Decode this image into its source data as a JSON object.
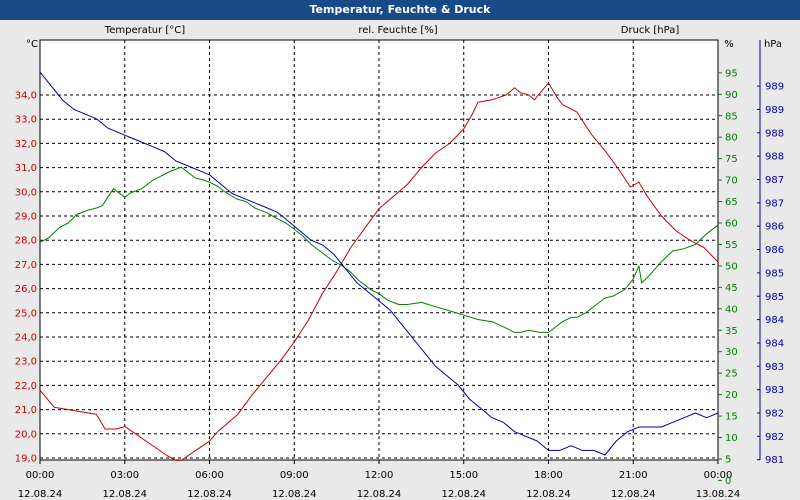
{
  "window": {
    "title": "Temperatur, Feuchte & Druck"
  },
  "colors": {
    "temperature": "#cc0000",
    "humidity": "#008000",
    "pressure": "#0000aa",
    "grid": "#000000",
    "titlebar": "#174a86"
  },
  "chart_data": {
    "type": "line",
    "title": "Temperatur, Feuchte & Druck",
    "grid": true,
    "x_ticks": [
      {
        "time": "00:00",
        "date": "12.08.24"
      },
      {
        "time": "03:00",
        "date": "12.08.24"
      },
      {
        "time": "06:00",
        "date": "12.08.24"
      },
      {
        "time": "09:00",
        "date": "12.08.24"
      },
      {
        "time": "12:00",
        "date": "12.08.24"
      },
      {
        "time": "15:00",
        "date": "12.08.24"
      },
      {
        "time": "18:00",
        "date": "12.08.24"
      },
      {
        "time": "21:00",
        "date": "12.08.24"
      },
      {
        "time": "00:00",
        "date": "13.08.24"
      }
    ],
    "axes": {
      "temperature": {
        "unit": "°C",
        "label": "Temperatur [°C]",
        "ticks": [
          "19,0",
          "20,0",
          "21,0",
          "22,0",
          "23,0",
          "24,0",
          "25,0",
          "26,0",
          "27,0",
          "28,0",
          "29,0",
          "30,0",
          "31,0",
          "32,0",
          "33,0",
          "34,0"
        ]
      },
      "humidity": {
        "unit": "%",
        "label": "rel. Feuchte [%]",
        "ticks": [
          "0",
          "5",
          "10",
          "15",
          "20",
          "25",
          "30",
          "35",
          "40",
          "45",
          "50",
          "55",
          "60",
          "65",
          "70",
          "75",
          "80",
          "85",
          "90",
          "95"
        ]
      },
      "pressure": {
        "unit": "hPa",
        "label": "Druck [hPa]",
        "ticks": [
          "981",
          "982",
          "982",
          "983",
          "983",
          "984",
          "984",
          "985",
          "985",
          "986",
          "986",
          "987",
          "987",
          "988",
          "988",
          "989",
          "989"
        ]
      }
    },
    "series": [
      {
        "name": "Temperatur [°C]",
        "axis": "temperature",
        "points": [
          [
            0,
            21.8
          ],
          [
            0.5,
            21.1
          ],
          [
            1,
            21.0
          ],
          [
            1.5,
            20.9
          ],
          [
            2,
            20.8
          ],
          [
            2.3,
            20.2
          ],
          [
            2.7,
            20.2
          ],
          [
            3,
            20.3
          ],
          [
            3.5,
            19.9
          ],
          [
            4,
            19.5
          ],
          [
            4.5,
            19.1
          ],
          [
            4.8,
            18.9
          ],
          [
            5,
            18.9
          ],
          [
            5.5,
            19.3
          ],
          [
            6,
            19.7
          ],
          [
            6.3,
            20.1
          ],
          [
            7,
            20.8
          ],
          [
            7.5,
            21.6
          ],
          [
            8,
            22.3
          ],
          [
            8.5,
            23.0
          ],
          [
            9,
            23.8
          ],
          [
            9.5,
            24.7
          ],
          [
            10,
            25.8
          ],
          [
            10.5,
            26.7
          ],
          [
            11,
            27.7
          ],
          [
            11.5,
            28.5
          ],
          [
            12,
            29.3
          ],
          [
            12.5,
            29.8
          ],
          [
            13,
            30.3
          ],
          [
            13.5,
            31.0
          ],
          [
            14,
            31.6
          ],
          [
            14.5,
            32.0
          ],
          [
            15,
            32.6
          ],
          [
            15.3,
            33.2
          ],
          [
            15.5,
            33.7
          ],
          [
            16,
            33.8
          ],
          [
            16.5,
            34.0
          ],
          [
            16.8,
            34.3
          ],
          [
            17,
            34.1
          ],
          [
            17.3,
            34.0
          ],
          [
            17.5,
            33.8
          ],
          [
            18,
            34.5
          ],
          [
            18.3,
            33.9
          ],
          [
            18.5,
            33.6
          ],
          [
            19,
            33.3
          ],
          [
            19.5,
            32.4
          ],
          [
            20,
            31.7
          ],
          [
            20.5,
            30.9
          ],
          [
            20.9,
            30.2
          ],
          [
            21.2,
            30.4
          ],
          [
            21.5,
            29.8
          ],
          [
            22,
            29.0
          ],
          [
            22.5,
            28.4
          ],
          [
            23,
            28.0
          ],
          [
            23.5,
            27.7
          ],
          [
            24,
            27.1
          ]
        ]
      },
      {
        "name": "rel. Feuchte [%]",
        "axis": "humidity",
        "points": [
          [
            0,
            55.5
          ],
          [
            0.3,
            56.5
          ],
          [
            0.7,
            59
          ],
          [
            1,
            60
          ],
          [
            1.3,
            62
          ],
          [
            1.7,
            63
          ],
          [
            2,
            63.5
          ],
          [
            2.2,
            64
          ],
          [
            2.4,
            66
          ],
          [
            2.6,
            68
          ],
          [
            3,
            66
          ],
          [
            3.2,
            67
          ],
          [
            3.6,
            68
          ],
          [
            4,
            70
          ],
          [
            4.3,
            71
          ],
          [
            4.6,
            72
          ],
          [
            5,
            73
          ],
          [
            5.2,
            72
          ],
          [
            5.5,
            70.5
          ],
          [
            5.8,
            70
          ],
          [
            6,
            69.5
          ],
          [
            6.3,
            68.5
          ],
          [
            6.6,
            67
          ],
          [
            7,
            65.5
          ],
          [
            7.3,
            65
          ],
          [
            7.6,
            63.5
          ],
          [
            8,
            62.5
          ],
          [
            8.4,
            61
          ],
          [
            8.7,
            60
          ],
          [
            9,
            58.5
          ],
          [
            9.3,
            57
          ],
          [
            9.6,
            55
          ],
          [
            10,
            53
          ],
          [
            10.3,
            51.5
          ],
          [
            10.7,
            50
          ],
          [
            11,
            48.5
          ],
          [
            11.3,
            46.5
          ],
          [
            11.7,
            44.5
          ],
          [
            12,
            43.5
          ],
          [
            12.3,
            42
          ],
          [
            12.7,
            41
          ],
          [
            13,
            41
          ],
          [
            13.5,
            41.5
          ],
          [
            14,
            40.5
          ],
          [
            14.5,
            39.5
          ],
          [
            15,
            38.5
          ],
          [
            15.5,
            37.5
          ],
          [
            16,
            37
          ],
          [
            16.5,
            35.5
          ],
          [
            16.8,
            34.5
          ],
          [
            17,
            34.5
          ],
          [
            17.3,
            35
          ],
          [
            17.7,
            34.5
          ],
          [
            18,
            34.5
          ],
          [
            18.2,
            35.5
          ],
          [
            18.5,
            37
          ],
          [
            18.8,
            38
          ],
          [
            19,
            38
          ],
          [
            19.3,
            39
          ],
          [
            19.7,
            41
          ],
          [
            20,
            42.5
          ],
          [
            20.3,
            43
          ],
          [
            20.7,
            44.5
          ],
          [
            21,
            47
          ],
          [
            21.2,
            50
          ],
          [
            21.3,
            46
          ],
          [
            21.6,
            48
          ],
          [
            22,
            51
          ],
          [
            22.4,
            53.5
          ],
          [
            22.8,
            54
          ],
          [
            23.2,
            55
          ],
          [
            23.6,
            57.5
          ],
          [
            24,
            59.5
          ]
        ]
      },
      {
        "name": "Druck [hPa]",
        "axis": "pressure",
        "points": [
          [
            0,
            989.3
          ],
          [
            0.4,
            989.0
          ],
          [
            0.8,
            988.7
          ],
          [
            1.2,
            988.5
          ],
          [
            1.6,
            988.4
          ],
          [
            2,
            988.3
          ],
          [
            2.4,
            988.1
          ],
          [
            2.8,
            988.0
          ],
          [
            3.2,
            987.9
          ],
          [
            3.6,
            987.8
          ],
          [
            4,
            987.7
          ],
          [
            4.4,
            987.6
          ],
          [
            4.8,
            987.4
          ],
          [
            5.2,
            987.3
          ],
          [
            5.6,
            987.2
          ],
          [
            6,
            987.1
          ],
          [
            6.4,
            986.9
          ],
          [
            6.8,
            986.7
          ],
          [
            7.2,
            986.6
          ],
          [
            7.6,
            986.5
          ],
          [
            8,
            986.4
          ],
          [
            8.4,
            986.3
          ],
          [
            8.8,
            986.1
          ],
          [
            9.2,
            985.9
          ],
          [
            9.6,
            985.7
          ],
          [
            10,
            985.6
          ],
          [
            10.4,
            985.4
          ],
          [
            10.8,
            985.1
          ],
          [
            11.2,
            984.8
          ],
          [
            11.6,
            984.6
          ],
          [
            12,
            984.4
          ],
          [
            12.4,
            984.2
          ],
          [
            12.8,
            983.9
          ],
          [
            13.2,
            983.6
          ],
          [
            13.6,
            983.3
          ],
          [
            14,
            983.0
          ],
          [
            14.4,
            982.8
          ],
          [
            14.8,
            982.6
          ],
          [
            15.2,
            982.3
          ],
          [
            15.6,
            982.1
          ],
          [
            16,
            981.9
          ],
          [
            16.4,
            981.8
          ],
          [
            16.8,
            981.6
          ],
          [
            17.2,
            981.5
          ],
          [
            17.6,
            981.4
          ],
          [
            18,
            981.2
          ],
          [
            18.4,
            981.2
          ],
          [
            18.8,
            981.3
          ],
          [
            19.2,
            981.2
          ],
          [
            19.6,
            981.2
          ],
          [
            20,
            981.1
          ],
          [
            20.4,
            981.4
          ],
          [
            20.8,
            981.6
          ],
          [
            21.2,
            981.7
          ],
          [
            21.6,
            981.7
          ],
          [
            22,
            981.7
          ],
          [
            22.4,
            981.8
          ],
          [
            22.8,
            981.9
          ],
          [
            23.2,
            982.0
          ],
          [
            23.6,
            981.9
          ],
          [
            24,
            982.0
          ]
        ]
      }
    ]
  }
}
